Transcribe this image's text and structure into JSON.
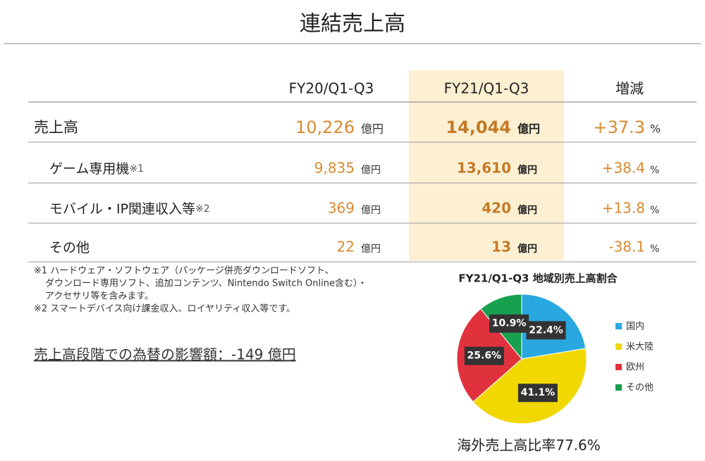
{
  "title": "連結売上高",
  "table": {
    "headers": [
      "FY20/Q1-Q3",
      "FY21/Q1-Q3",
      "増減"
    ],
    "rows": [
      {
        "label": "売上高",
        "fy20": "10,226",
        "fy20_unit": "億円",
        "fy21": "14,044",
        "fy21_unit": "億円",
        "change": "+37.3",
        "change_unit": "%"
      },
      {
        "label": "ゲーム専用機",
        "note": "※1",
        "fy20": "9,835",
        "fy20_unit": "億円",
        "fy21": "13,610",
        "fy21_unit": "億円",
        "change": "+38.4",
        "change_unit": "%"
      },
      {
        "label": "モバイル・IP関連収入等",
        "note": "※2",
        "fy20": "369",
        "fy20_unit": "億円",
        "fy21": "420",
        "fy21_unit": "億円",
        "change": "+13.8",
        "change_unit": "%"
      },
      {
        "label": "その他",
        "fy20": "22",
        "fy20_unit": "億円",
        "fy21": "13",
        "fy21_unit": "億円",
        "change": "-38.1",
        "change_unit": "%"
      }
    ]
  },
  "notes": [
    "※1 ハードウェア・ソフトウェア（パッケージ併売ダウンロードソフト、",
    "ダウンロード専用ソフト、追加コンテンツ、Nintendo Switch Online含む）・",
    "アクセサリ等を含みます。",
    "※2 スマートデバイス向け課金収入、ロイヤリティ収入等です。"
  ],
  "fx_note": "売上高段階での為替の影響額：-149 億円",
  "chart_data": {
    "type": "pie",
    "title": "FY21/Q1-Q3 地域別売上高割合",
    "categories": [
      "国内",
      "米大陸",
      "欧州",
      "その他"
    ],
    "values": [
      22.4,
      41.1,
      25.6,
      10.9
    ],
    "value_labels": [
      "22.4%",
      "41.1%",
      "25.6%",
      "10.9%"
    ],
    "colors": [
      "#29a8e0",
      "#f0d800",
      "#e0323c",
      "#17a050"
    ],
    "caption": "海外売上高比率77.6%"
  }
}
